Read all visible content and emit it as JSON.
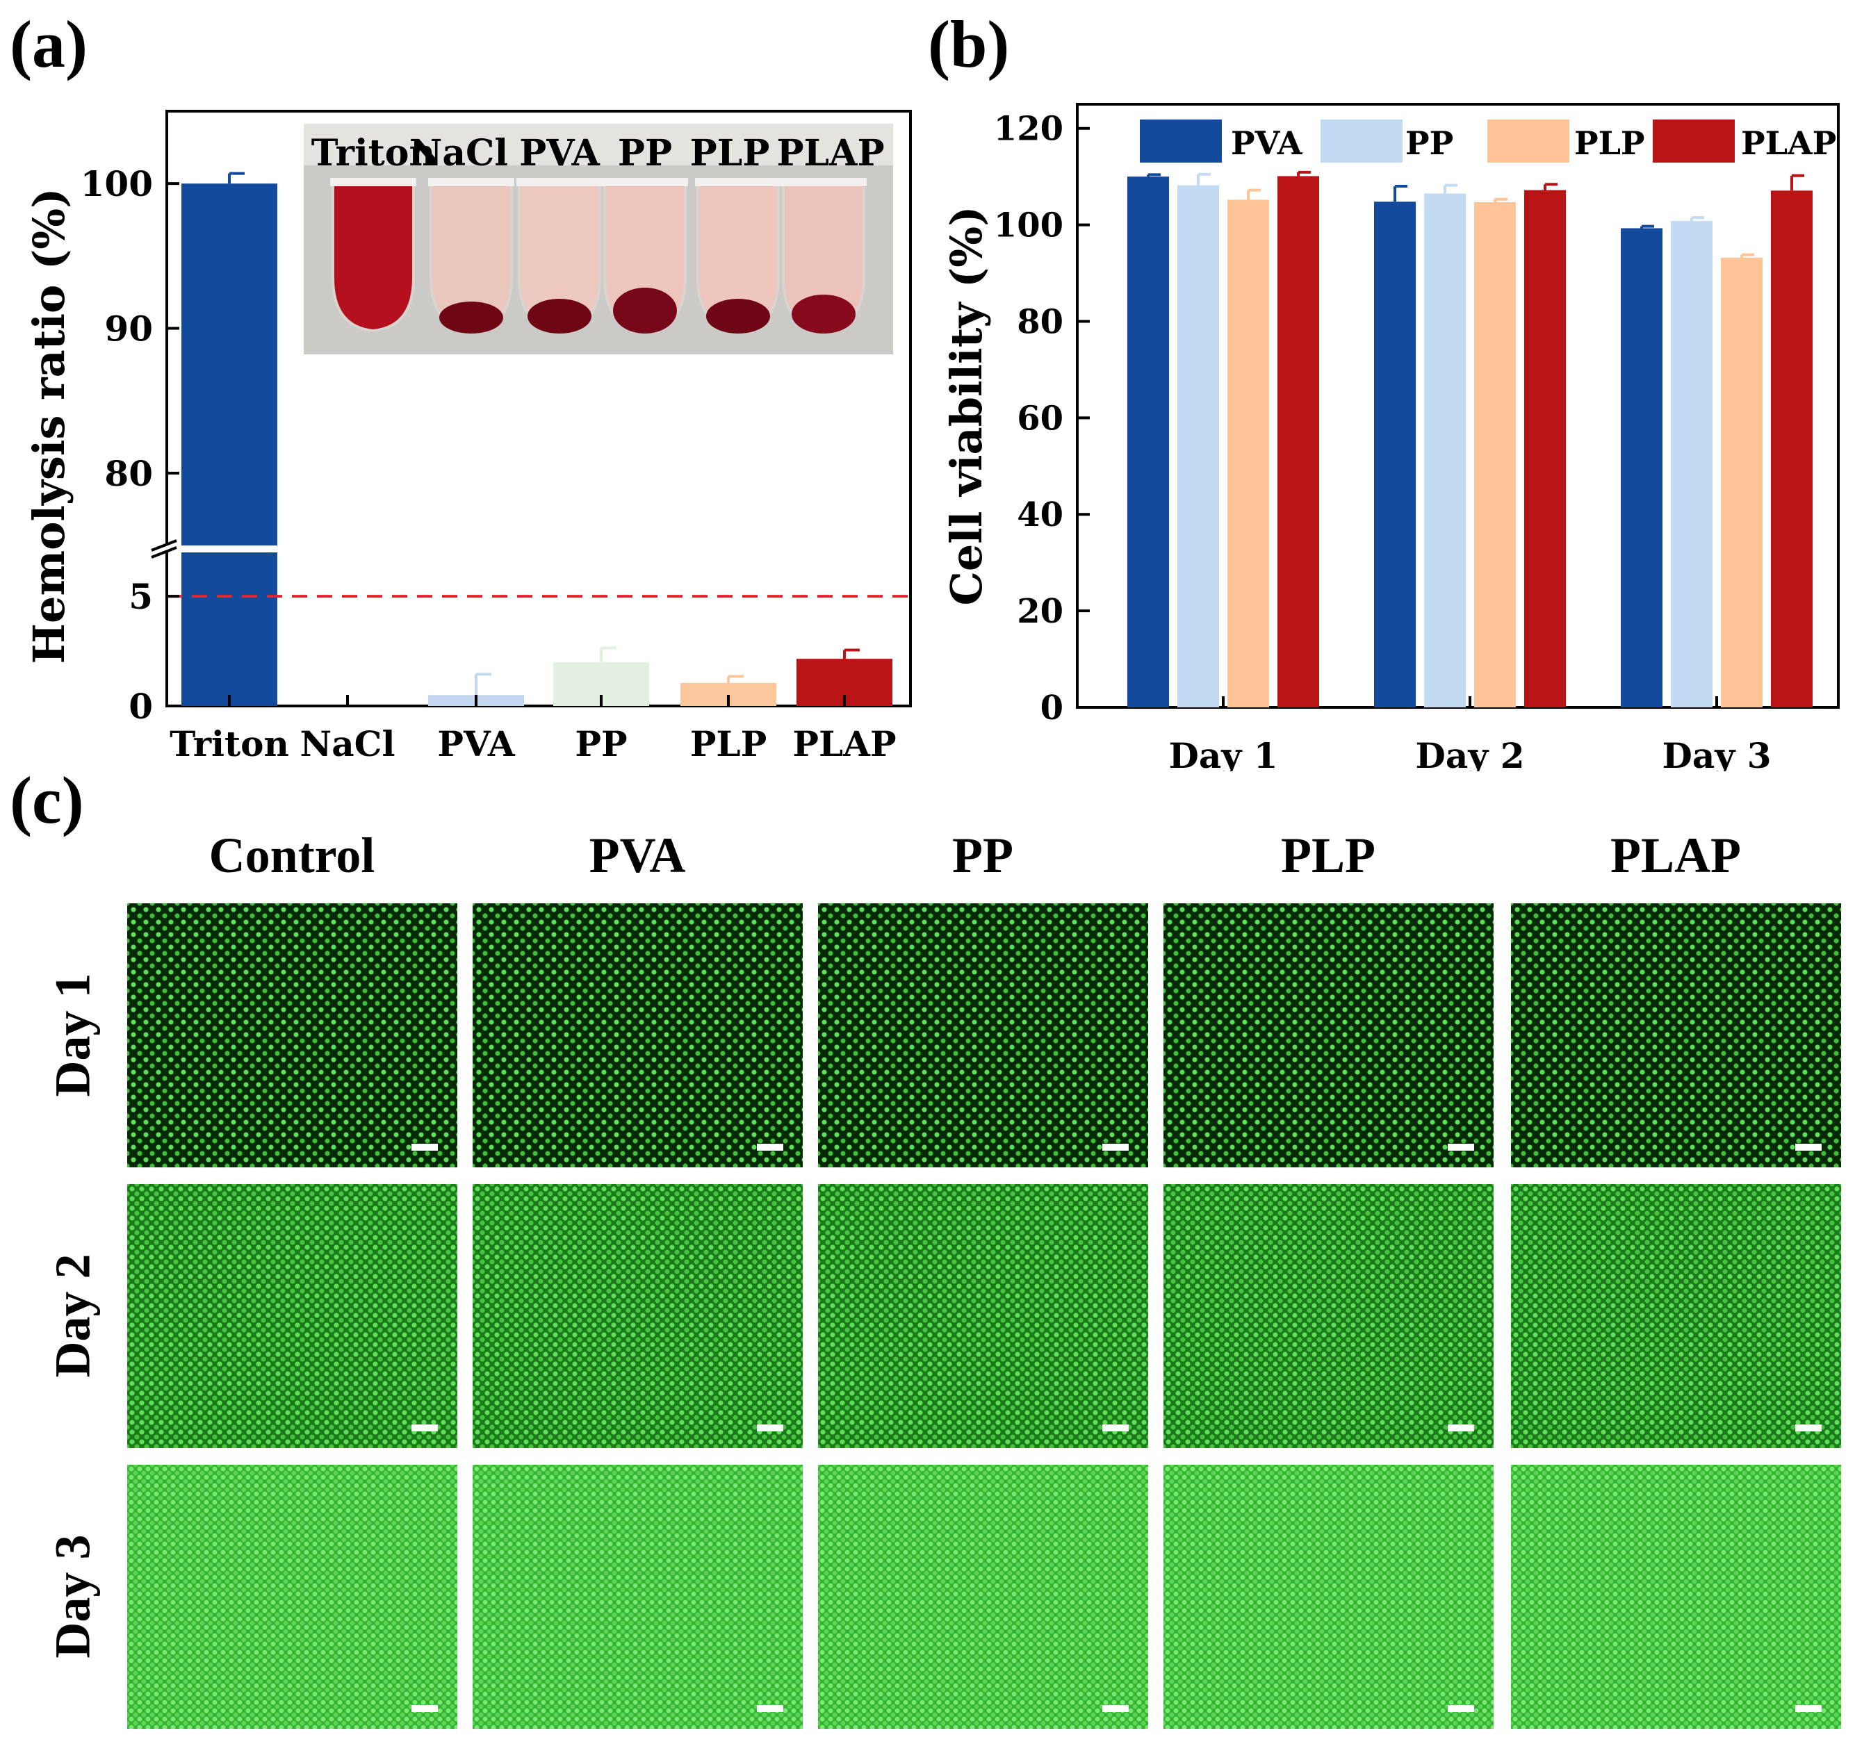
{
  "panels": {
    "a": "(a)",
    "b": "(b)",
    "c": "(c)"
  },
  "chart_data": [
    {
      "id": "a",
      "type": "bar",
      "ylabel": "Hemolysis ratio (%)",
      "categories": [
        "Triton",
        "NaCl",
        "PVA",
        "PP",
        "PLP",
        "PLAP"
      ],
      "values": [
        100,
        0,
        0.5,
        2.0,
        1.05,
        2.15
      ],
      "errors": [
        0.7,
        0,
        0.95,
        0.65,
        0.3,
        0.4
      ],
      "colors": [
        "#144a9b",
        "#1c3f8c",
        "#c3d7f0",
        "#e3efe0",
        "#fcc79c",
        "#b91516"
      ],
      "broken_axis": {
        "lower": [
          0,
          7
        ],
        "upper": [
          75,
          105
        ]
      },
      "yticks": [
        0,
        5,
        80,
        90,
        100
      ],
      "threshold": {
        "value": 5,
        "color": "#e0262a"
      },
      "inset_labels": [
        "Triton",
        "NaCl",
        "PVA",
        "PP",
        "PLP",
        "PLAP"
      ]
    },
    {
      "id": "b",
      "type": "bar",
      "ylabel": "Cell viability (%)",
      "categories": [
        "Day 1",
        "Day 2",
        "Day 3"
      ],
      "ylim": [
        0,
        125
      ],
      "yticks": [
        0,
        20,
        40,
        60,
        80,
        100,
        120
      ],
      "series": [
        {
          "name": "PVA",
          "color": "#134a9c",
          "values": [
            110,
            104.8,
            99.3
          ],
          "errors": [
            0.4,
            3.2,
            0.4
          ]
        },
        {
          "name": "PP",
          "color": "#c3daf3",
          "values": [
            108.2,
            106.5,
            100.8
          ],
          "errors": [
            2.3,
            1.7,
            0.7
          ]
        },
        {
          "name": "PLP",
          "color": "#fcc497",
          "values": [
            105.2,
            104.7,
            93.2
          ],
          "errors": [
            2.0,
            0.6,
            0.6
          ]
        },
        {
          "name": "PLAP",
          "color": "#b81416",
          "values": [
            110.1,
            107.2,
            107.1
          ],
          "errors": [
            0.8,
            1.2,
            3.1
          ]
        }
      ]
    }
  ],
  "micrographs": {
    "columns": [
      "Control",
      "PVA",
      "PP",
      "PLP",
      "PLAP"
    ],
    "rows": [
      "Day 1",
      "Day 2",
      "Day 3"
    ]
  }
}
